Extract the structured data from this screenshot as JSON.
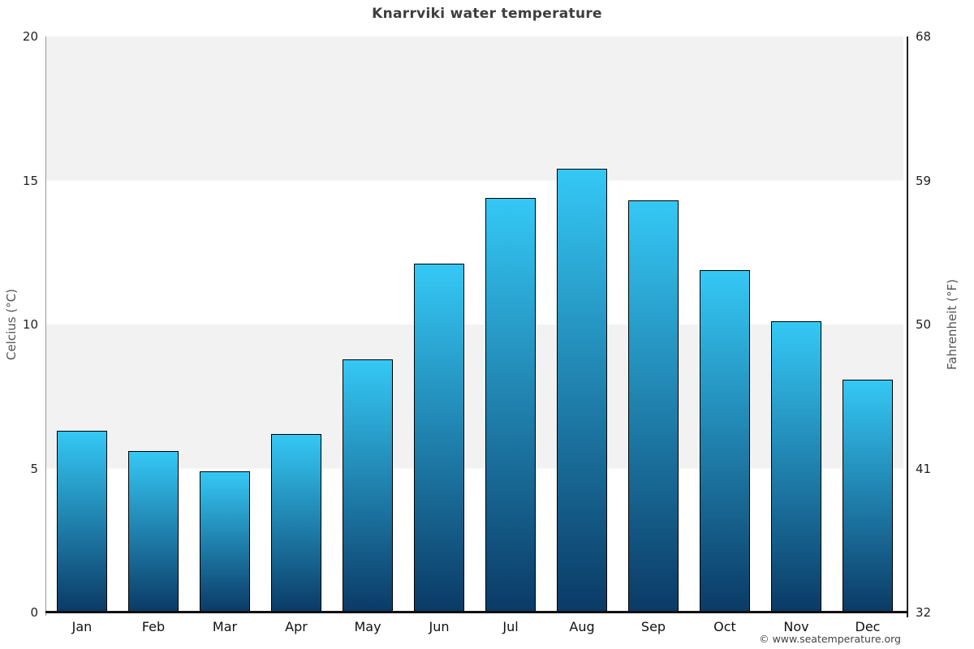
{
  "title": "Knarrviki water temperature",
  "chart_data": {
    "type": "bar",
    "title": "Knarrviki water temperature",
    "categories": [
      "Jan",
      "Feb",
      "Mar",
      "Apr",
      "May",
      "Jun",
      "Jul",
      "Aug",
      "Sep",
      "Oct",
      "Nov",
      "Dec"
    ],
    "values": [
      6.3,
      5.6,
      4.9,
      6.2,
      8.8,
      12.1,
      14.4,
      15.4,
      14.3,
      11.9,
      10.1,
      8.1
    ],
    "unit": "°C",
    "ylabel_left": "Celcius (°C)",
    "ylabel_right": "Fahrenheit (°F)",
    "yticks_celsius": [
      0,
      5,
      10,
      15,
      20
    ],
    "yticks_fahrenheit": [
      32,
      41,
      50,
      59,
      68
    ],
    "ylim": [
      0,
      20
    ],
    "grid": "alternating horizontal bands, legend none",
    "band_color": "#f2f2f2",
    "band_alt_color": "#ffffff",
    "bar_gradient_top": "#35c8f5",
    "bar_gradient_bottom": "#0b3a66",
    "bar_border_color": "#000000"
  },
  "footer": {
    "copyright": "© www.seatemperature.org"
  }
}
